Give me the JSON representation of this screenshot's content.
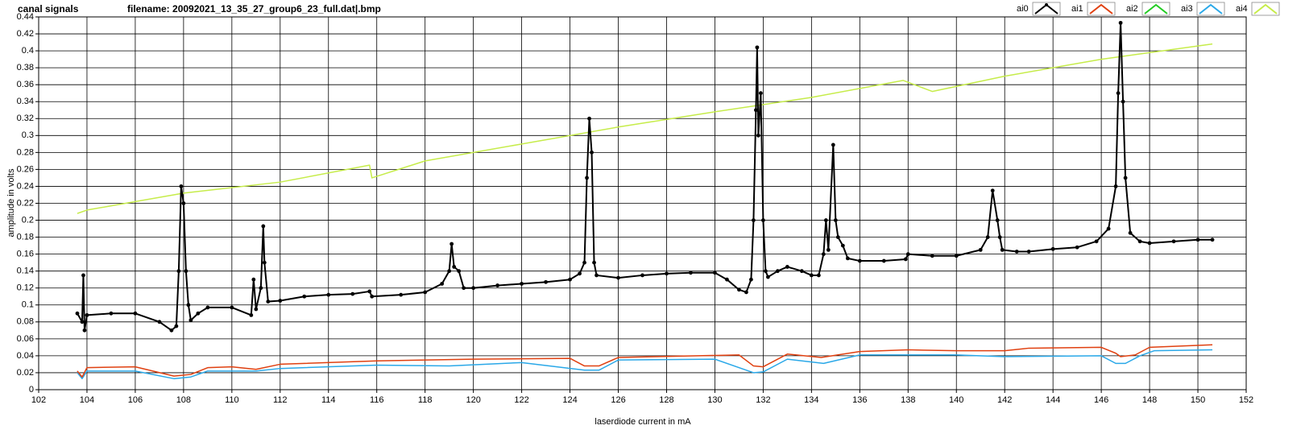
{
  "chart_data": {
    "type": "line",
    "title": "canal signals",
    "subtitle": "filename: 20092021_13_35_27_group6_23_full.dat|.bmp",
    "x_label": "laserdiode current in mA",
    "y_label": "amplitude in volts",
    "xlim": [
      102,
      152
    ],
    "xticks": [
      102,
      104,
      106,
      108,
      110,
      112,
      114,
      116,
      118,
      120,
      122,
      124,
      126,
      128,
      130,
      132,
      134,
      136,
      138,
      140,
      142,
      144,
      146,
      148,
      150,
      152
    ],
    "ylim": [
      0,
      0.44
    ],
    "yticks": [
      0,
      0.02,
      0.04,
      0.06,
      0.08,
      0.1,
      0.12,
      0.14,
      0.16,
      0.18,
      0.2,
      0.22,
      0.24,
      0.26,
      0.28,
      0.3,
      0.32,
      0.34,
      0.36,
      0.38,
      0.4,
      0.42,
      0.44
    ],
    "grid": true,
    "legend": "top-right",
    "series": [
      {
        "name": "ai0",
        "color": "#000000",
        "markers": true,
        "x": [
          103.6,
          103.8,
          103.85,
          103.9,
          104.0,
          105,
          106,
          107,
          107.5,
          107.7,
          107.8,
          107.9,
          108.0,
          108.1,
          108.2,
          108.3,
          108.6,
          109,
          110,
          110.8,
          110.9,
          111.0,
          111.2,
          111.3,
          111.35,
          111.5,
          112,
          113,
          114,
          115,
          115.7,
          115.8,
          117,
          118,
          118.7,
          119,
          119.1,
          119.2,
          119.4,
          119.6,
          120,
          121,
          122,
          123,
          124,
          124.4,
          124.6,
          124.7,
          124.8,
          124.9,
          125.0,
          125.1,
          126,
          127,
          128,
          129,
          130,
          130.5,
          131,
          131.3,
          131.5,
          131.6,
          131.7,
          131.75,
          131.8,
          131.9,
          132.0,
          132.1,
          132.2,
          132.6,
          133,
          133.6,
          134,
          134.3,
          134.5,
          134.6,
          134.7,
          134.9,
          135.0,
          135.1,
          135.3,
          135.5,
          136,
          137,
          137.9,
          138,
          139,
          140,
          141,
          141.3,
          141.5,
          141.7,
          141.8,
          141.9,
          142.5,
          143,
          144,
          145,
          145.8,
          146.3,
          146.6,
          146.7,
          146.8,
          146.9,
          147.0,
          147.2,
          147.6,
          148,
          149,
          150,
          150.6
        ],
        "values": [
          0.09,
          0.08,
          0.135,
          0.07,
          0.088,
          0.09,
          0.09,
          0.08,
          0.07,
          0.075,
          0.14,
          0.24,
          0.22,
          0.14,
          0.1,
          0.082,
          0.09,
          0.097,
          0.097,
          0.088,
          0.13,
          0.095,
          0.12,
          0.193,
          0.15,
          0.104,
          0.105,
          0.11,
          0.112,
          0.113,
          0.116,
          0.11,
          0.112,
          0.115,
          0.125,
          0.14,
          0.172,
          0.145,
          0.14,
          0.12,
          0.12,
          0.123,
          0.125,
          0.127,
          0.13,
          0.137,
          0.15,
          0.25,
          0.32,
          0.28,
          0.15,
          0.135,
          0.132,
          0.135,
          0.137,
          0.138,
          0.138,
          0.13,
          0.118,
          0.115,
          0.13,
          0.2,
          0.33,
          0.404,
          0.3,
          0.35,
          0.2,
          0.14,
          0.133,
          0.14,
          0.145,
          0.14,
          0.135,
          0.135,
          0.16,
          0.2,
          0.165,
          0.289,
          0.2,
          0.18,
          0.17,
          0.155,
          0.152,
          0.152,
          0.154,
          0.16,
          0.158,
          0.158,
          0.165,
          0.18,
          0.235,
          0.2,
          0.18,
          0.165,
          0.163,
          0.163,
          0.166,
          0.168,
          0.175,
          0.19,
          0.24,
          0.35,
          0.433,
          0.34,
          0.25,
          0.185,
          0.175,
          0.173,
          0.175,
          0.177,
          0.177
        ]
      },
      {
        "name": "ai1",
        "color": "#e04010",
        "x": [
          103.6,
          103.8,
          104,
          106,
          107.6,
          108.3,
          109,
          110,
          111,
          112,
          116,
          120,
          124,
          124.6,
          125.2,
          126,
          131,
          131.6,
          132,
          133,
          134.4,
          136,
          138,
          140,
          142,
          143,
          146,
          146.6,
          146.8,
          147.4,
          148,
          150.6
        ],
        "values": [
          0.022,
          0.015,
          0.026,
          0.027,
          0.016,
          0.018,
          0.026,
          0.027,
          0.024,
          0.03,
          0.034,
          0.036,
          0.037,
          0.028,
          0.028,
          0.038,
          0.041,
          0.028,
          0.027,
          0.042,
          0.038,
          0.045,
          0.047,
          0.046,
          0.046,
          0.049,
          0.05,
          0.043,
          0.039,
          0.041,
          0.05,
          0.053
        ]
      },
      {
        "name": "ai2",
        "color": "#22cc22",
        "x": [],
        "values": []
      },
      {
        "name": "ai3",
        "color": "#2aa8e8",
        "x": [
          103.6,
          103.8,
          104,
          106,
          107.6,
          108.3,
          109,
          111,
          112,
          116,
          119,
          122,
          124.6,
          125.2,
          126,
          130,
          131.6,
          132,
          133,
          134.5,
          136,
          140,
          142,
          146,
          146.6,
          147,
          147.6,
          148.2,
          150.6
        ],
        "values": [
          0.02,
          0.013,
          0.022,
          0.022,
          0.013,
          0.015,
          0.022,
          0.022,
          0.025,
          0.029,
          0.028,
          0.032,
          0.023,
          0.023,
          0.035,
          0.036,
          0.02,
          0.021,
          0.036,
          0.031,
          0.041,
          0.041,
          0.039,
          0.04,
          0.031,
          0.031,
          0.04,
          0.046,
          0.047
        ]
      },
      {
        "name": "ai4",
        "color": "#c6ec4a",
        "x": [
          103.6,
          104,
          108,
          112,
          115.7,
          115.8,
          118,
          122,
          126,
          130,
          134,
          137.8,
          139,
          142,
          146,
          150.6
        ],
        "values": [
          0.208,
          0.212,
          0.232,
          0.245,
          0.265,
          0.25,
          0.27,
          0.29,
          0.31,
          0.328,
          0.345,
          0.365,
          0.352,
          0.37,
          0.39,
          0.408
        ]
      }
    ]
  }
}
